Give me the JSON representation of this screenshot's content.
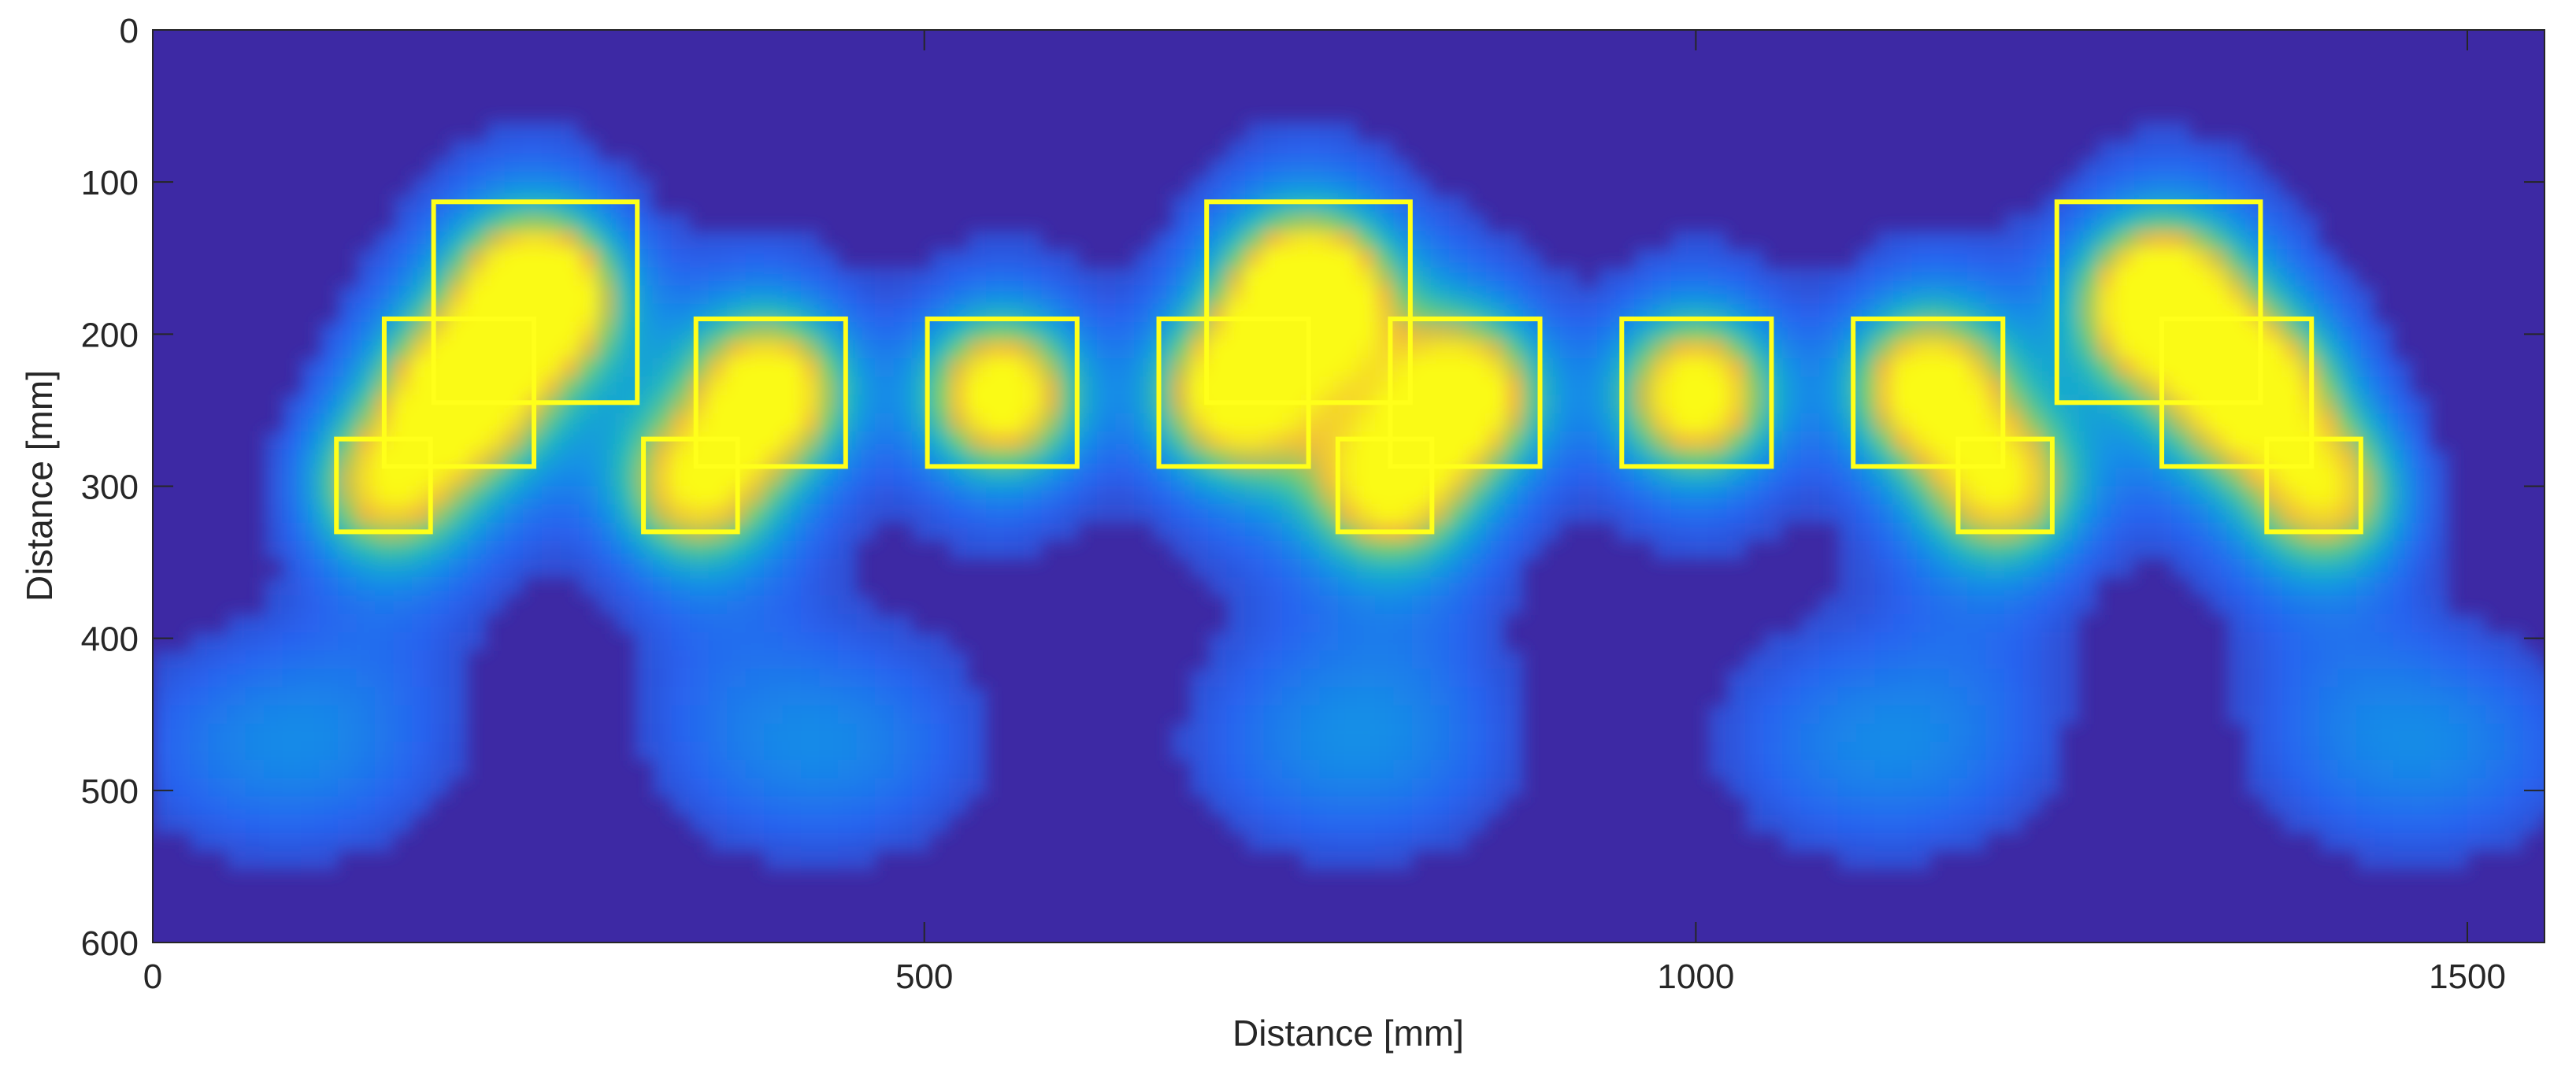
{
  "chart_data": {
    "type": "heatmap",
    "colormap": "parula",
    "xlabel": "Distance [mm]",
    "ylabel": "Distance [mm]",
    "xlim": [
      0,
      1550
    ],
    "ylim": [
      600,
      0
    ],
    "y_reversed": true,
    "x_ticks": [
      0,
      500,
      1000,
      1500
    ],
    "y_ticks": [
      0,
      100,
      200,
      300,
      400,
      500,
      600
    ],
    "grid": false,
    "colors": {
      "background": "#3d29a4",
      "box": "#ffff1a",
      "axis": "#262626"
    },
    "hotspots": [
      {
        "x": 250,
        "y": 175,
        "intensity": 1.0
      },
      {
        "x": 750,
        "y": 175,
        "intensity": 1.0
      },
      {
        "x": 1300,
        "y": 180,
        "intensity": 1.0
      },
      {
        "x": 200,
        "y": 240,
        "intensity": 0.8
      },
      {
        "x": 400,
        "y": 238,
        "intensity": 0.82
      },
      {
        "x": 550,
        "y": 240,
        "intensity": 0.85
      },
      {
        "x": 700,
        "y": 240,
        "intensity": 0.8
      },
      {
        "x": 850,
        "y": 240,
        "intensity": 0.82
      },
      {
        "x": 1000,
        "y": 240,
        "intensity": 0.85
      },
      {
        "x": 1150,
        "y": 235,
        "intensity": 0.8
      },
      {
        "x": 1360,
        "y": 238,
        "intensity": 0.8
      },
      {
        "x": 150,
        "y": 300,
        "intensity": 0.62
      },
      {
        "x": 350,
        "y": 300,
        "intensity": 0.65
      },
      {
        "x": 800,
        "y": 300,
        "intensity": 0.68
      },
      {
        "x": 1200,
        "y": 300,
        "intensity": 0.65
      },
      {
        "x": 1410,
        "y": 305,
        "intensity": 0.62
      }
    ],
    "boxes": [
      {
        "x0": 182,
        "x1": 314,
        "y0": 113,
        "y1": 245
      },
      {
        "x0": 683,
        "x1": 815,
        "y0": 113,
        "y1": 245
      },
      {
        "x0": 1234,
        "x1": 1366,
        "y0": 113,
        "y1": 245
      },
      {
        "x0": 150,
        "x1": 247,
        "y0": 190,
        "y1": 287
      },
      {
        "x0": 352,
        "x1": 449,
        "y0": 190,
        "y1": 287
      },
      {
        "x0": 502,
        "x1": 599,
        "y0": 190,
        "y1": 287
      },
      {
        "x0": 652,
        "x1": 749,
        "y0": 190,
        "y1": 287
      },
      {
        "x0": 802,
        "x1": 899,
        "y0": 190,
        "y1": 287
      },
      {
        "x0": 952,
        "x1": 1049,
        "y0": 190,
        "y1": 287
      },
      {
        "x0": 1102,
        "x1": 1199,
        "y0": 190,
        "y1": 287
      },
      {
        "x0": 1302,
        "x1": 1399,
        "y0": 190,
        "y1": 287
      },
      {
        "x0": 119,
        "x1": 180,
        "y0": 269,
        "y1": 330
      },
      {
        "x0": 318,
        "x1": 379,
        "y0": 269,
        "y1": 330
      },
      {
        "x0": 768,
        "x1": 829,
        "y0": 269,
        "y1": 330
      },
      {
        "x0": 1170,
        "x1": 1231,
        "y0": 269,
        "y1": 330
      },
      {
        "x0": 1370,
        "x1": 1431,
        "y0": 269,
        "y1": 330
      }
    ]
  }
}
